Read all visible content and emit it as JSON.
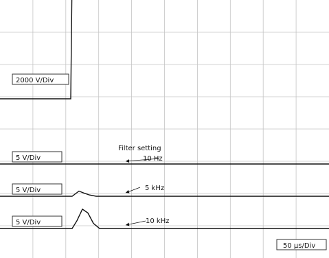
{
  "chart_data": {
    "type": "line",
    "title": "",
    "time_per_division": "50 µs/Div",
    "divisions": {
      "horizontal": 10,
      "vertical": 8
    },
    "grid": true,
    "traces": [
      {
        "scale_label": "2000 V/Div",
        "unit": "V",
        "volts_per_div": 2000,
        "x_us": [
          0,
          103,
          105,
          108,
          112,
          118,
          130,
          479
        ],
        "y_v": [
          0,
          0,
          7700,
          7800,
          7650,
          7550,
          7550,
          7550
        ]
      },
      {
        "scale_label": "5 V/Div",
        "filter_label": "10 Hz",
        "unit": "V",
        "volts_per_div": 5,
        "x_us": [
          0,
          479
        ],
        "y_v": [
          0,
          0
        ]
      },
      {
        "scale_label": "5 V/Div",
        "filter_label": "5 kHz",
        "unit": "V",
        "volts_per_div": 5,
        "x_us": [
          0,
          105,
          115,
          122,
          130,
          140,
          479
        ],
        "y_v": [
          0,
          0,
          0.8,
          0.5,
          0.2,
          0,
          0
        ]
      },
      {
        "scale_label": "5 V/Div",
        "filter_label": "10 kHz",
        "unit": "V",
        "volts_per_div": 5,
        "x_us": [
          0,
          105,
          112,
          120,
          128,
          136,
          145,
          479
        ],
        "y_v": [
          0,
          0,
          1.2,
          3.0,
          2.4,
          0.8,
          0,
          0
        ]
      }
    ],
    "annotation": "Filter setting"
  }
}
